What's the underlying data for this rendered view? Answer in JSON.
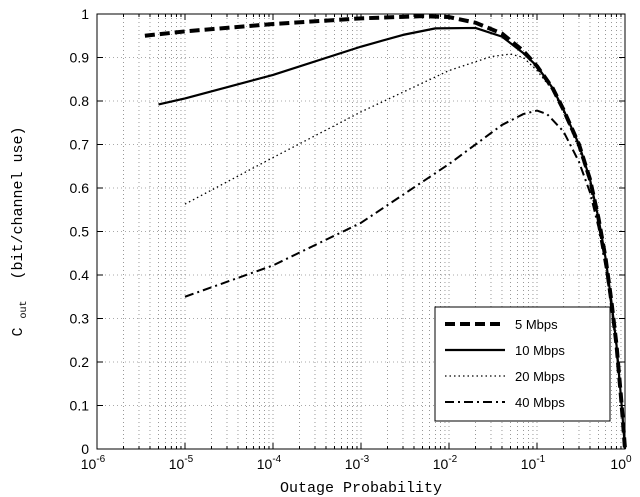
{
  "chart_data": {
    "type": "line",
    "xlabel": "Outage Probability",
    "ylabel_main": "C",
    "ylabel_sub": "out",
    "ylabel_rest": "(bit/channel use)",
    "x_scale": "log",
    "xlim": [
      1e-06,
      1
    ],
    "ylim": [
      0,
      1
    ],
    "x_ticks": [
      {
        "value": 1e-06,
        "base": "10",
        "exp": "-6"
      },
      {
        "value": 1e-05,
        "base": "10",
        "exp": "-5"
      },
      {
        "value": 0.0001,
        "base": "10",
        "exp": "-4"
      },
      {
        "value": 0.001,
        "base": "10",
        "exp": "-3"
      },
      {
        "value": 0.01,
        "base": "10",
        "exp": "-2"
      },
      {
        "value": 0.1,
        "base": "10",
        "exp": "-1"
      },
      {
        "value": 1,
        "base": "10",
        "exp": "0"
      }
    ],
    "y_ticks": [
      {
        "value": 0,
        "label": "0"
      },
      {
        "value": 0.1,
        "label": "0.1"
      },
      {
        "value": 0.2,
        "label": "0.2"
      },
      {
        "value": 0.3,
        "label": "0.3"
      },
      {
        "value": 0.4,
        "label": "0.4"
      },
      {
        "value": 0.5,
        "label": "0.5"
      },
      {
        "value": 0.6,
        "label": "0.6"
      },
      {
        "value": 0.7,
        "label": "0.7"
      },
      {
        "value": 0.8,
        "label": "0.8"
      },
      {
        "value": 0.9,
        "label": "0.9"
      },
      {
        "value": 1,
        "label": "1"
      }
    ],
    "grid": true,
    "legend_position": "bottom-right",
    "series": [
      {
        "name": "5 Mbps",
        "style": "dashed-thick",
        "x": [
          3.5e-06,
          1e-05,
          0.0001,
          0.001,
          0.005,
          0.01,
          0.02,
          0.04,
          0.07,
          0.1,
          0.15,
          0.2,
          0.3,
          0.4,
          0.5,
          0.6,
          0.7,
          0.8,
          0.9,
          0.95,
          1.0
        ],
        "y": [
          0.95,
          0.96,
          0.977,
          0.99,
          0.995,
          0.993,
          0.98,
          0.955,
          0.915,
          0.88,
          0.83,
          0.78,
          0.7,
          0.62,
          0.53,
          0.44,
          0.34,
          0.24,
          0.12,
          0.06,
          0.0
        ]
      },
      {
        "name": "10 Mbps",
        "style": "solid",
        "x": [
          5e-06,
          1e-05,
          0.0001,
          0.001,
          0.003,
          0.007,
          0.02,
          0.04,
          0.07,
          0.1,
          0.15,
          0.2,
          0.3,
          0.4,
          0.5,
          0.6,
          0.7,
          0.8,
          0.9,
          0.95,
          1.0
        ],
        "y": [
          0.792,
          0.806,
          0.86,
          0.925,
          0.952,
          0.967,
          0.968,
          0.948,
          0.91,
          0.88,
          0.83,
          0.78,
          0.7,
          0.62,
          0.53,
          0.44,
          0.34,
          0.24,
          0.12,
          0.06,
          0.0
        ]
      },
      {
        "name": "20 Mbps",
        "style": "dotted",
        "x": [
          1e-05,
          0.0001,
          0.001,
          0.01,
          0.03,
          0.05,
          0.07,
          0.1,
          0.15,
          0.2,
          0.3,
          0.4,
          0.5,
          0.6,
          0.7,
          0.8,
          0.9,
          0.95,
          1.0
        ],
        "y": [
          0.563,
          0.67,
          0.775,
          0.87,
          0.902,
          0.908,
          0.9,
          0.87,
          0.825,
          0.775,
          0.69,
          0.61,
          0.52,
          0.43,
          0.33,
          0.23,
          0.12,
          0.06,
          0.0
        ]
      },
      {
        "name": "40 Mbps",
        "style": "dashdot",
        "x": [
          1e-05,
          0.0001,
          0.001,
          0.01,
          0.04,
          0.07,
          0.1,
          0.13,
          0.2,
          0.3,
          0.4,
          0.5,
          0.6,
          0.7,
          0.8,
          0.9,
          0.95,
          1.0
        ],
        "y": [
          0.35,
          0.422,
          0.52,
          0.655,
          0.745,
          0.77,
          0.778,
          0.77,
          0.73,
          0.66,
          0.59,
          0.51,
          0.42,
          0.33,
          0.23,
          0.12,
          0.06,
          0.0
        ]
      }
    ]
  }
}
